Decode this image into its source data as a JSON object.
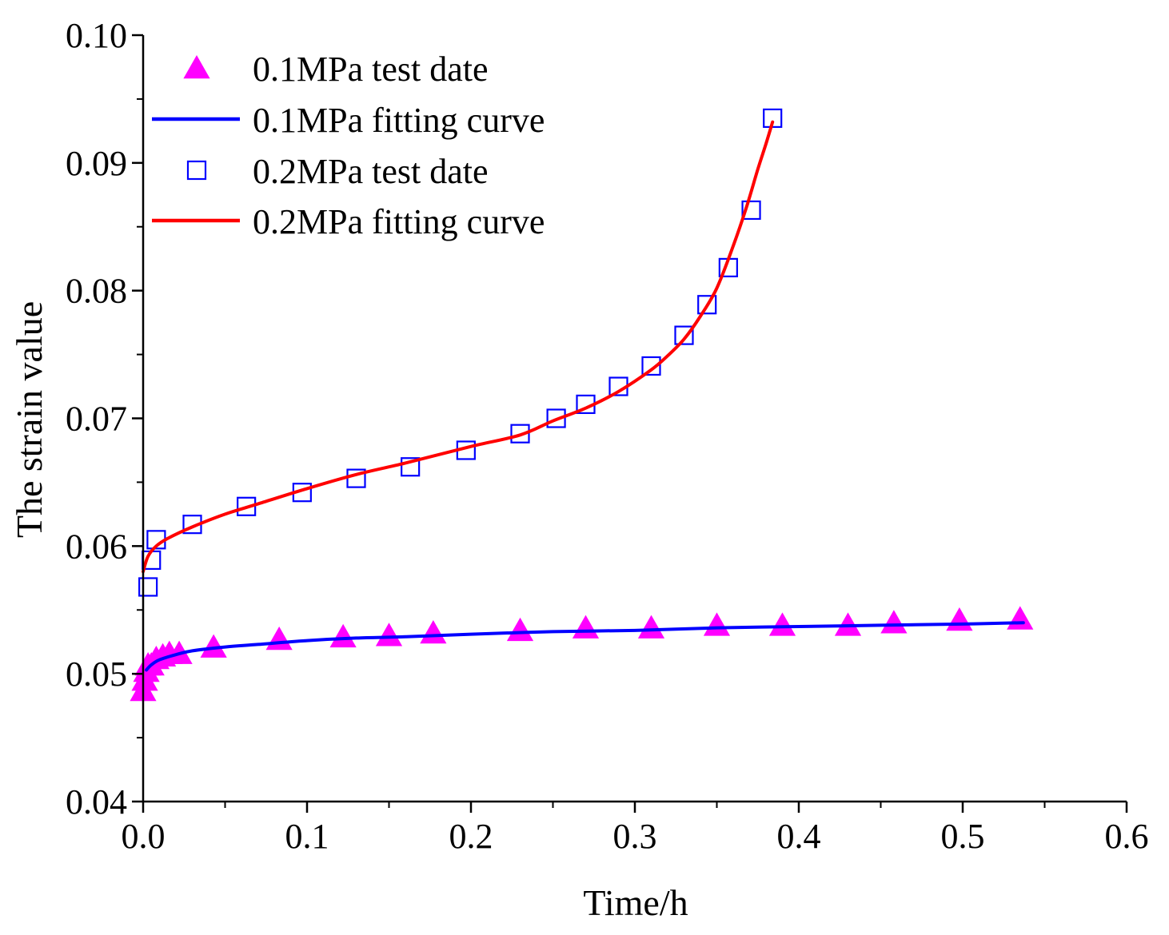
{
  "chart_data": {
    "type": "scatter",
    "title": "",
    "xlabel": "Time/h",
    "ylabel": "The strain value",
    "xlim": [
      0.0,
      0.6
    ],
    "ylim": [
      0.04,
      0.1
    ],
    "xticks": [
      "0.0",
      "0.1",
      "0.2",
      "0.3",
      "0.4",
      "0.5",
      "0.6"
    ],
    "yticks": [
      "0.04",
      "0.05",
      "0.06",
      "0.07",
      "0.08",
      "0.09",
      "0.10"
    ],
    "legend_position": "top-left",
    "series": [
      {
        "name": "0.1MPa test date",
        "kind": "markers",
        "marker": "triangle-up",
        "color": "#ff00ff",
        "x": [
          0.0,
          0.001,
          0.002,
          0.003,
          0.005,
          0.008,
          0.012,
          0.016,
          0.022,
          0.043,
          0.083,
          0.122,
          0.15,
          0.177,
          0.23,
          0.27,
          0.31,
          0.35,
          0.39,
          0.43,
          0.458,
          0.498,
          0.535
        ],
        "y": [
          0.0487,
          0.0495,
          0.0502,
          0.0507,
          0.0507,
          0.0512,
          0.0514,
          0.0516,
          0.0516,
          0.0521,
          0.0527,
          0.0529,
          0.053,
          0.0532,
          0.0534,
          0.0536,
          0.0536,
          0.0538,
          0.0538,
          0.0538,
          0.054,
          0.0542,
          0.0543
        ]
      },
      {
        "name": "0.1MPa fitting curve",
        "kind": "line",
        "color": "#0000ff",
        "x": [
          0.002,
          0.005,
          0.01,
          0.02,
          0.03,
          0.05,
          0.07,
          0.1,
          0.13,
          0.16,
          0.2,
          0.25,
          0.3,
          0.35,
          0.4,
          0.45,
          0.5,
          0.537
        ],
        "y": [
          0.0503,
          0.0507,
          0.0511,
          0.0515,
          0.0518,
          0.0521,
          0.0523,
          0.0526,
          0.0528,
          0.0529,
          0.0531,
          0.0533,
          0.0534,
          0.0536,
          0.0537,
          0.0538,
          0.0539,
          0.054
        ]
      },
      {
        "name": "0.2MPa test date",
        "kind": "markers",
        "marker": "square-open",
        "color": "#0000ff",
        "x": [
          0.003,
          0.005,
          0.008,
          0.03,
          0.063,
          0.097,
          0.13,
          0.163,
          0.197,
          0.23,
          0.252,
          0.27,
          0.29,
          0.31,
          0.33,
          0.344,
          0.357,
          0.371,
          0.384
        ],
        "y": [
          0.0568,
          0.0589,
          0.0605,
          0.0617,
          0.0631,
          0.0642,
          0.0653,
          0.0662,
          0.0675,
          0.0688,
          0.07,
          0.0711,
          0.0725,
          0.0741,
          0.0765,
          0.0789,
          0.0818,
          0.0863,
          0.0935
        ]
      },
      {
        "name": "0.2MPa fitting curve",
        "kind": "line",
        "color": "#ff0000",
        "x": [
          0.0,
          0.003,
          0.008,
          0.015,
          0.03,
          0.05,
          0.07,
          0.1,
          0.13,
          0.16,
          0.2,
          0.23,
          0.25,
          0.27,
          0.29,
          0.31,
          0.32,
          0.33,
          0.34,
          0.35,
          0.36,
          0.368,
          0.375,
          0.38,
          0.384
        ],
        "y": [
          0.058,
          0.0592,
          0.06,
          0.0606,
          0.0615,
          0.0625,
          0.0633,
          0.0645,
          0.0656,
          0.0665,
          0.0678,
          0.0687,
          0.0698,
          0.0708,
          0.0721,
          0.0738,
          0.0749,
          0.0762,
          0.078,
          0.0802,
          0.0835,
          0.0865,
          0.0895,
          0.0915,
          0.0932
        ]
      }
    ]
  }
}
